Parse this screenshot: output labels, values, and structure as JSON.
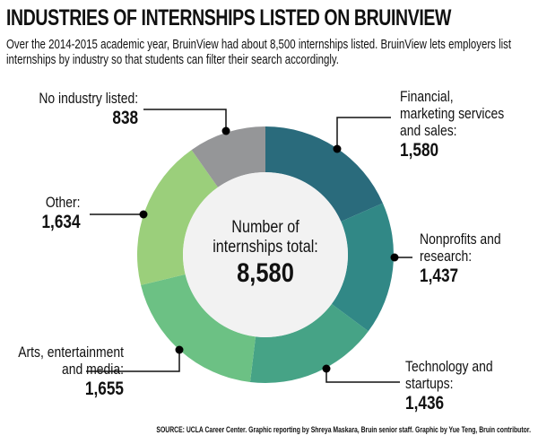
{
  "header": {
    "title": "INDUSTRIES OF INTERNSHIPS LISTED ON BRUINVIEW",
    "subtitle": "Over the 2014-2015 academic year, BruinView had about 8,500 internships listed. BruinView lets employers list internships by industry so that students can filter their search accordingly."
  },
  "chart_data": {
    "type": "pie",
    "donut": true,
    "categories": [
      "Financial, marketing services and sales:",
      "Nonprofits and research:",
      "Technology and startups:",
      "Arts, entertainment and media:",
      "Other:",
      "No industry listed:"
    ],
    "values": [
      1580,
      1437,
      1436,
      1655,
      1634,
      838
    ],
    "value_labels": [
      "1,580",
      "1,437",
      "1,436",
      "1,655",
      "1,634",
      "838"
    ],
    "colors": [
      "#2a6b7c",
      "#318886",
      "#46a386",
      "#6cc184",
      "#9bcf7b",
      "#959698"
    ],
    "center": {
      "label": "Number of internships total:",
      "value": "8,580"
    }
  },
  "source": "SOURCE: UCLA Career Center. Graphic reporting by Shreya Maskara, Bruin senior staff. Graphic by Yue Teng, Bruin contributor."
}
